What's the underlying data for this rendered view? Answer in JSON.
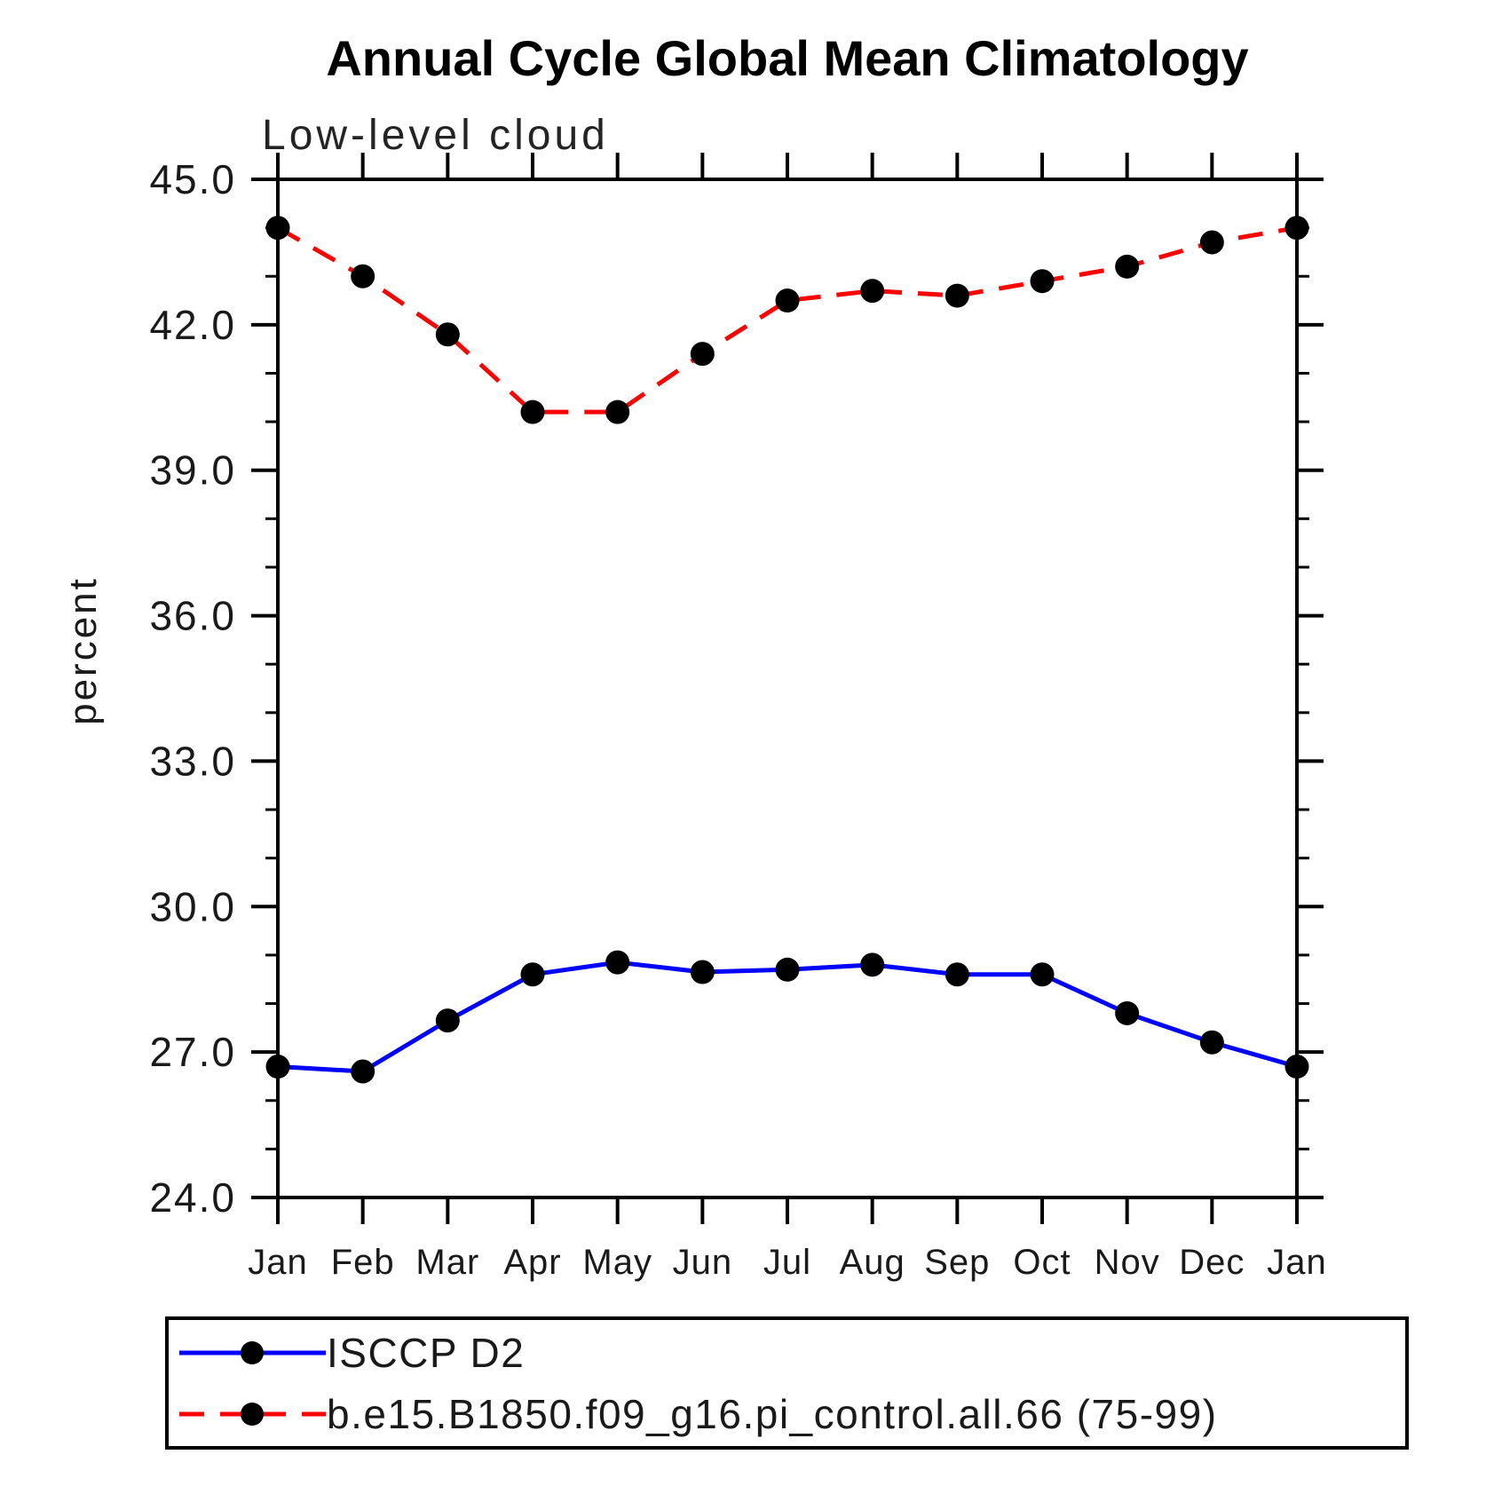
{
  "page": {
    "background": "#ffffff"
  },
  "chart_data": {
    "type": "line",
    "title": "Annual Cycle Global Mean Climatology",
    "subtitle": "Low-level cloud",
    "xlabel": "",
    "ylabel": "percent",
    "categories": [
      "Jan",
      "Feb",
      "Mar",
      "Apr",
      "May",
      "Jun",
      "Jul",
      "Aug",
      "Sep",
      "Oct",
      "Nov",
      "Dec",
      "Jan"
    ],
    "ylim": [
      24.0,
      45.0
    ],
    "y_major_step": 3.0,
    "y_minor_step": 1.0,
    "y_tick_labels": [
      "24.0",
      "27.0",
      "30.0",
      "33.0",
      "36.0",
      "39.0",
      "42.0",
      "45.0"
    ],
    "grid": false,
    "legend_position": "boxed legend below plot, bottom-left",
    "marker_color": "#000000",
    "series": [
      {
        "name": "ISCCP D2",
        "color": "#0000ff",
        "style": "solid",
        "dashed": false,
        "values": [
          26.7,
          26.6,
          27.65,
          28.6,
          28.85,
          28.65,
          28.7,
          28.8,
          28.6,
          28.6,
          27.8,
          27.2,
          26.7
        ]
      },
      {
        "name": "b.e15.B1850.f09_g16.pi_control.all.66 (75-99)",
        "color": "#ff0000",
        "style": "dashed",
        "dashed": true,
        "values": [
          44.0,
          43.0,
          41.8,
          40.2,
          40.2,
          41.4,
          42.5,
          42.7,
          42.6,
          42.9,
          43.2,
          43.7,
          44.0
        ]
      }
    ],
    "legend": [
      {
        "label": "ISCCP D2",
        "color": "#0000ff",
        "dashed": false
      },
      {
        "label": "b.e15.B1850.f09_g16.pi_control.all.66 (75-99)",
        "color": "#ff0000",
        "dashed": true
      }
    ]
  }
}
